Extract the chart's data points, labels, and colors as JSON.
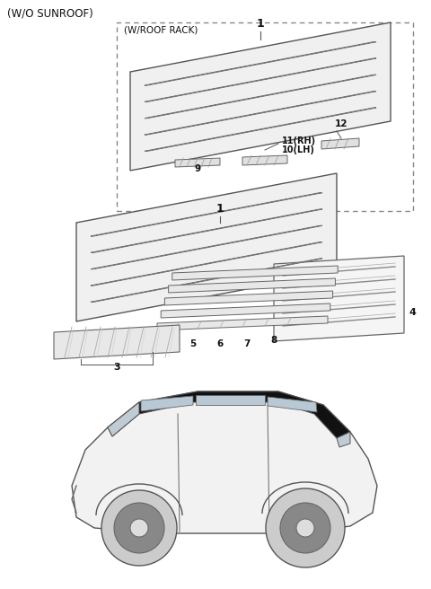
{
  "title_top_left": "(W/O SUNROOF)",
  "dashed_box_label": "(W/ROOF RACK)",
  "bg_color": "#ffffff",
  "line_color": "#555555",
  "text_color": "#111111",
  "fig_width": 4.8,
  "fig_height": 6.56,
  "dpi": 100
}
